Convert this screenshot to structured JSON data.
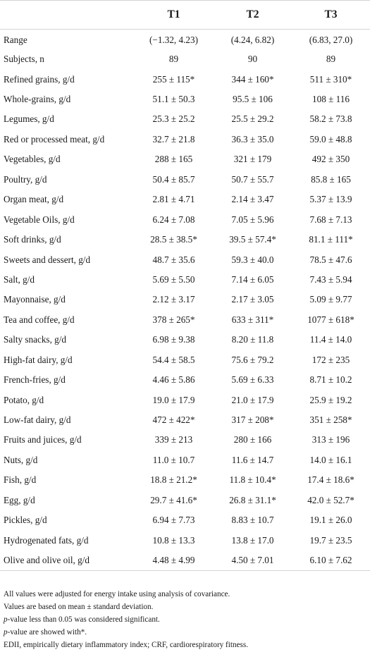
{
  "headers": [
    "",
    "T1",
    "T2",
    "T3"
  ],
  "rows": [
    {
      "label": "Range",
      "t1": "(−1.32, 4.23)",
      "t2": "(4.24, 6.82)",
      "t3": "(6.83, 27.0)"
    },
    {
      "label": "Subjects, n",
      "t1": "89",
      "t2": "90",
      "t3": "89"
    },
    {
      "label": "Refined grains, g/d",
      "t1": "255 ± 115*",
      "t2": "344 ± 160*",
      "t3": "511 ± 310*"
    },
    {
      "label": "Whole-grains, g/d",
      "t1": "51.1 ± 50.3",
      "t2": "95.5 ± 106",
      "t3": "108 ± 116"
    },
    {
      "label": "Legumes, g/d",
      "t1": "25.3 ± 25.2",
      "t2": "25.5 ± 29.2",
      "t3": "58.2 ± 73.8"
    },
    {
      "label": "Red or processed meat, g/d",
      "t1": "32.7 ± 21.8",
      "t2": "36.3 ± 35.0",
      "t3": "59.0 ± 48.8"
    },
    {
      "label": "Vegetables, g/d",
      "t1": "288 ± 165",
      "t2": "321 ± 179",
      "t3": "492 ± 350"
    },
    {
      "label": "Poultry, g/d",
      "t1": "50.4 ± 85.7",
      "t2": "50.7 ± 55.7",
      "t3": "85.8 ± 165"
    },
    {
      "label": "Organ meat, g/d",
      "t1": "2.81 ± 4.71",
      "t2": "2.14 ± 3.47",
      "t3": "5.37 ± 13.9"
    },
    {
      "label": "Vegetable Oils, g/d",
      "t1": "6.24 ± 7.08",
      "t2": "7.05 ± 5.96",
      "t3": "7.68 ± 7.13"
    },
    {
      "label": "Soft drinks, g/d",
      "t1": "28.5 ± 38.5*",
      "t2": "39.5 ± 57.4*",
      "t3": "81.1 ± 111*"
    },
    {
      "label": "Sweets and dessert, g/d",
      "t1": "48.7 ± 35.6",
      "t2": "59.3 ± 40.0",
      "t3": "78.5 ± 47.6"
    },
    {
      "label": "Salt, g/d",
      "t1": "5.69 ± 5.50",
      "t2": "7.14 ± 6.05",
      "t3": "7.43 ± 5.94"
    },
    {
      "label": "Mayonnaise, g/d",
      "t1": "2.12 ± 3.17",
      "t2": "2.17 ± 3.05",
      "t3": "5.09 ± 9.77"
    },
    {
      "label": "Tea and coffee, g/d",
      "t1": "378 ± 265*",
      "t2": "633 ± 311*",
      "t3": "1077 ± 618*"
    },
    {
      "label": "Salty snacks, g/d",
      "t1": "6.98 ± 9.38",
      "t2": "8.20 ± 11.8",
      "t3": "11.4 ± 14.0"
    },
    {
      "label": "High-fat dairy, g/d",
      "t1": "54.4 ± 58.5",
      "t2": "75.6 ± 79.2",
      "t3": "172 ± 235"
    },
    {
      "label": "French-fries, g/d",
      "t1": "4.46 ± 5.86",
      "t2": "5.69 ± 6.33",
      "t3": "8.71 ± 10.2"
    },
    {
      "label": "Potato, g/d",
      "t1": "19.0 ± 17.9",
      "t2": "21.0 ± 17.9",
      "t3": "25.9 ± 19.2"
    },
    {
      "label": "Low-fat dairy, g/d",
      "t1": "472 ± 422*",
      "t2": "317 ± 208*",
      "t3": "351 ± 258*"
    },
    {
      "label": "Fruits and juices, g/d",
      "t1": "339 ± 213",
      "t2": "280 ± 166",
      "t3": "313 ± 196"
    },
    {
      "label": "Nuts, g/d",
      "t1": "11.0 ± 10.7",
      "t2": "11.6 ± 14.7",
      "t3": "14.0 ± 16.1"
    },
    {
      "label": "Fish, g/d",
      "t1": "18.8 ± 21.2*",
      "t2": "11.8 ± 10.4*",
      "t3": "17.4 ± 18.6*"
    },
    {
      "label": "Egg, g/d",
      "t1": "29.7 ± 41.6*",
      "t2": "26.8 ± 31.1*",
      "t3": "42.0 ± 52.7*"
    },
    {
      "label": "Pickles, g/d",
      "t1": "6.94 ± 7.73",
      "t2": "8.83 ± 10.7",
      "t3": "19.1 ± 26.0"
    },
    {
      "label": "Hydrogenated fats, g/d",
      "t1": "10.8 ± 13.3",
      "t2": "13.8 ± 17.0",
      "t3": "19.7 ± 23.5"
    },
    {
      "label": "Olive and olive oil, g/d",
      "t1": "4.48 ± 4.99",
      "t2": "4.50 ± 7.01",
      "t3": "6.10 ± 7.62"
    }
  ],
  "notes": {
    "n1": "All values were adjusted for energy intake using analysis of covariance.",
    "n2": "Values are based on mean ± standard deviation.",
    "n3_p": "p",
    "n3_rest": "-value less than 0.05 was considered significant.",
    "n4_p": "p",
    "n4_rest": "-value are showed with*.",
    "n5": "EDII, empirically dietary inflammatory index; CRF, cardiorespiratory fitness."
  }
}
